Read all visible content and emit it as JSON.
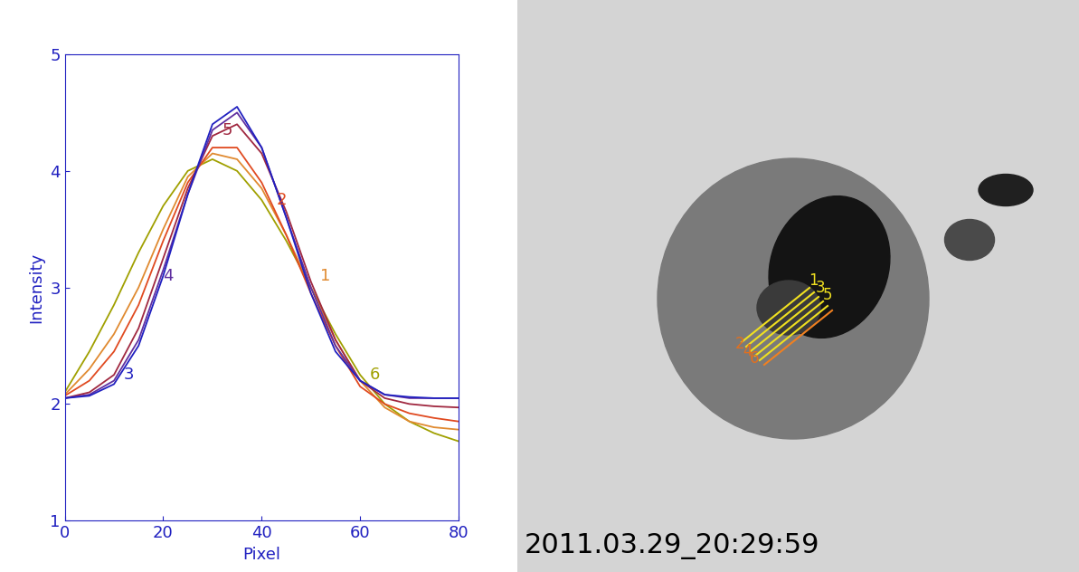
{
  "chart_data": {
    "type": "line",
    "x_label": "Pixel",
    "y_label": "Intensity",
    "x": [
      0,
      5,
      10,
      15,
      20,
      25,
      30,
      35,
      40,
      45,
      50,
      55,
      60,
      65,
      70,
      75,
      80
    ],
    "xlim": [
      0,
      80
    ],
    "xticks": [
      0,
      20,
      40,
      60,
      80
    ],
    "ylim": [
      1,
      5
    ],
    "yticks": [
      1,
      2,
      3,
      4,
      5
    ],
    "grid": false,
    "series": [
      {
        "name": "6",
        "color": "#a0a000",
        "line_style": "solid",
        "values": [
          2.1,
          2.45,
          2.85,
          3.3,
          3.7,
          4.0,
          4.1,
          4.0,
          3.75,
          3.4,
          3.0,
          2.6,
          2.25,
          2.0,
          1.85,
          1.75,
          1.68
        ]
      },
      {
        "name": "1",
        "color": "#e08a30",
        "line_style": "solid",
        "values": [
          2.08,
          2.3,
          2.6,
          3.0,
          3.5,
          3.95,
          4.15,
          4.1,
          3.85,
          3.45,
          3.0,
          2.55,
          2.2,
          1.97,
          1.85,
          1.8,
          1.78
        ]
      },
      {
        "name": "2",
        "color": "#e04a20",
        "line_style": "solid",
        "values": [
          2.07,
          2.2,
          2.45,
          2.85,
          3.4,
          3.9,
          4.2,
          4.2,
          3.9,
          3.45,
          2.95,
          2.5,
          2.15,
          2.0,
          1.92,
          1.88,
          1.85
        ]
      },
      {
        "name": "5",
        "color": "#a02840",
        "line_style": "solid",
        "values": [
          2.05,
          2.1,
          2.25,
          2.65,
          3.25,
          3.85,
          4.3,
          4.4,
          4.15,
          3.65,
          3.05,
          2.55,
          2.2,
          2.05,
          2.0,
          1.98,
          1.97
        ]
      },
      {
        "name": "4",
        "color": "#6030a0",
        "line_style": "solid",
        "values": [
          2.05,
          2.08,
          2.2,
          2.55,
          3.15,
          3.8,
          4.35,
          4.5,
          4.2,
          3.6,
          3.0,
          2.5,
          2.2,
          2.08,
          2.05,
          2.05,
          2.05
        ]
      },
      {
        "name": "3",
        "color": "#2020c0",
        "line_style": "solid",
        "values": [
          2.05,
          2.07,
          2.17,
          2.5,
          3.1,
          3.8,
          4.4,
          4.55,
          4.2,
          3.6,
          2.95,
          2.45,
          2.2,
          2.08,
          2.06,
          2.05,
          2.05
        ]
      }
    ],
    "image_annotations": [
      "1",
      "3",
      "5",
      "2",
      "4",
      "6"
    ],
    "timestamp": "2011.03.29_20:29:59"
  }
}
